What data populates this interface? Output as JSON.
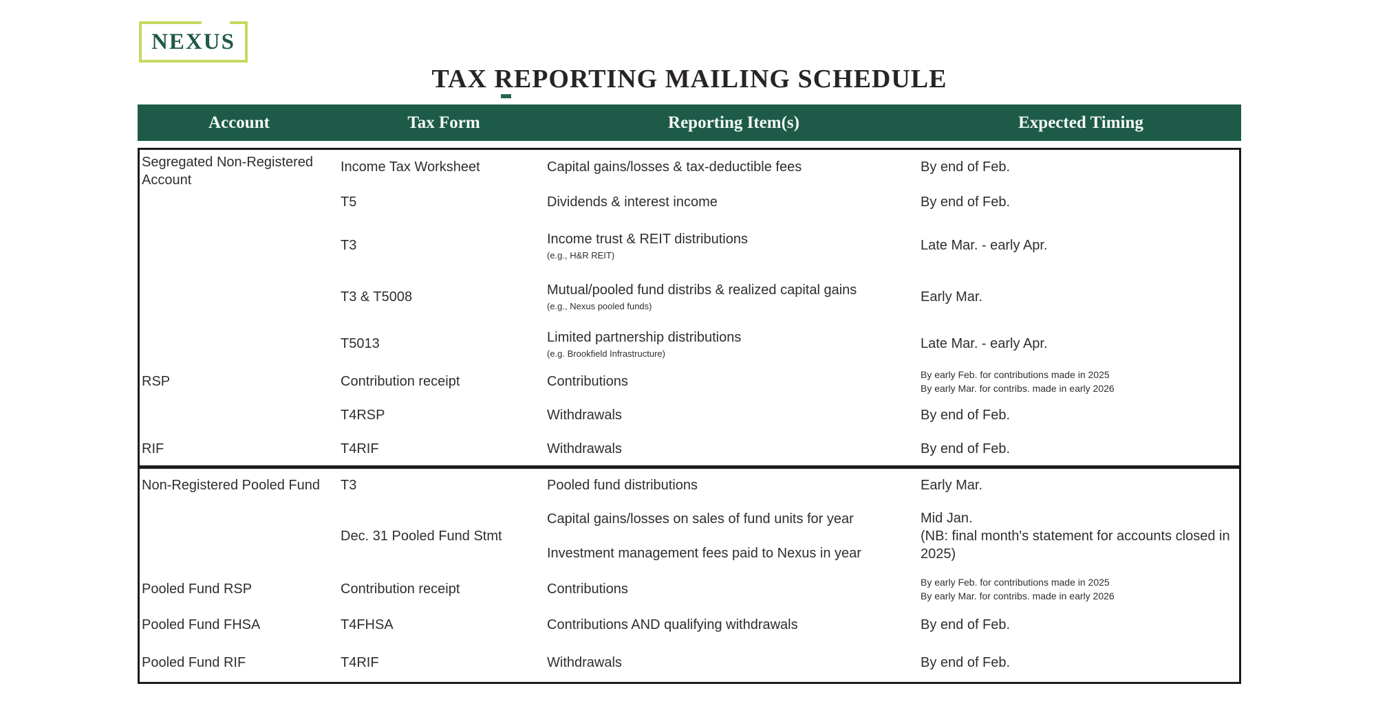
{
  "logo": {
    "text": "NEXUS"
  },
  "title": "TAX REPORTING MAILING SCHEDULE",
  "table": {
    "headers": [
      "Account",
      "Tax Form",
      "Reporting Item(s)",
      "Expected Timing"
    ],
    "sections": [
      {
        "rows": [
          {
            "account": "Segregated Non-Registered Account",
            "tax_form": "Income Tax Worksheet",
            "item": "Capital gains/losses & tax-deductible fees",
            "timing": "By end of Feb."
          },
          {
            "tax_form": "T5",
            "item": "Dividends & interest income",
            "timing": "By end of Feb."
          },
          {
            "tax_form": "T3",
            "item": "Income trust & REIT distributions",
            "item_note": "(e.g., H&R REIT)",
            "timing": "Late Mar. - early Apr."
          },
          {
            "tax_form": "T3 & T5008",
            "item": "Mutual/pooled fund distribs & realized capital gains",
            "item_note": "(e.g., Nexus pooled funds)",
            "timing": "Early Mar."
          },
          {
            "tax_form": "T5013",
            "item": "Limited partnership distributions",
            "item_note": "(e.g. Brookfield Infrastructure)",
            "timing": "Late Mar. - early Apr."
          },
          {
            "account": "RSP",
            "tax_form": "Contribution receipt",
            "item": "Contributions",
            "timing_small": [
              "By early Feb. for contributions made in 2025",
              "By early Mar. for contribs. made in early 2026"
            ]
          },
          {
            "tax_form": "T4RSP",
            "item": "Withdrawals",
            "timing": "By end of Feb."
          },
          {
            "account": "RIF",
            "tax_form": "T4RIF",
            "item": "Withdrawals",
            "timing": "By end of Feb."
          }
        ]
      },
      {
        "rows": [
          {
            "account": "Non-Registered Pooled Fund",
            "tax_form": "T3",
            "item": "Pooled fund distributions",
            "timing": "Early Mar."
          },
          {
            "tax_form": "Dec. 31 Pooled Fund Stmt",
            "items": [
              "Capital gains/losses on sales of fund units for year",
              "Investment management fees paid to Nexus in year"
            ],
            "timing": "Mid Jan.",
            "timing_note": "(NB: final month's statement for accounts closed in 2025)"
          },
          {
            "account": "Pooled Fund RSP",
            "tax_form": "Contribution receipt",
            "item": "Contributions",
            "timing_small": [
              "By early Feb. for contributions made in 2025",
              "By early Mar. for contribs. made in early 2026"
            ]
          },
          {
            "account": "Pooled Fund FHSA",
            "tax_form": "T4FHSA",
            "item": "Contributions AND qualifying withdrawals",
            "timing": "By end of Feb."
          },
          {
            "account": "Pooled Fund RIF",
            "tax_form": "T4RIF",
            "item": "Withdrawals",
            "timing": "By end of Feb."
          }
        ]
      }
    ]
  },
  "colors": {
    "header_green": "#1d5b48",
    "logo_border": "#c4da5e",
    "logo_text": "#1f5a46",
    "title_text": "#282425",
    "body_text": "#2e2e2e",
    "table_border": "#1b1b1b"
  }
}
